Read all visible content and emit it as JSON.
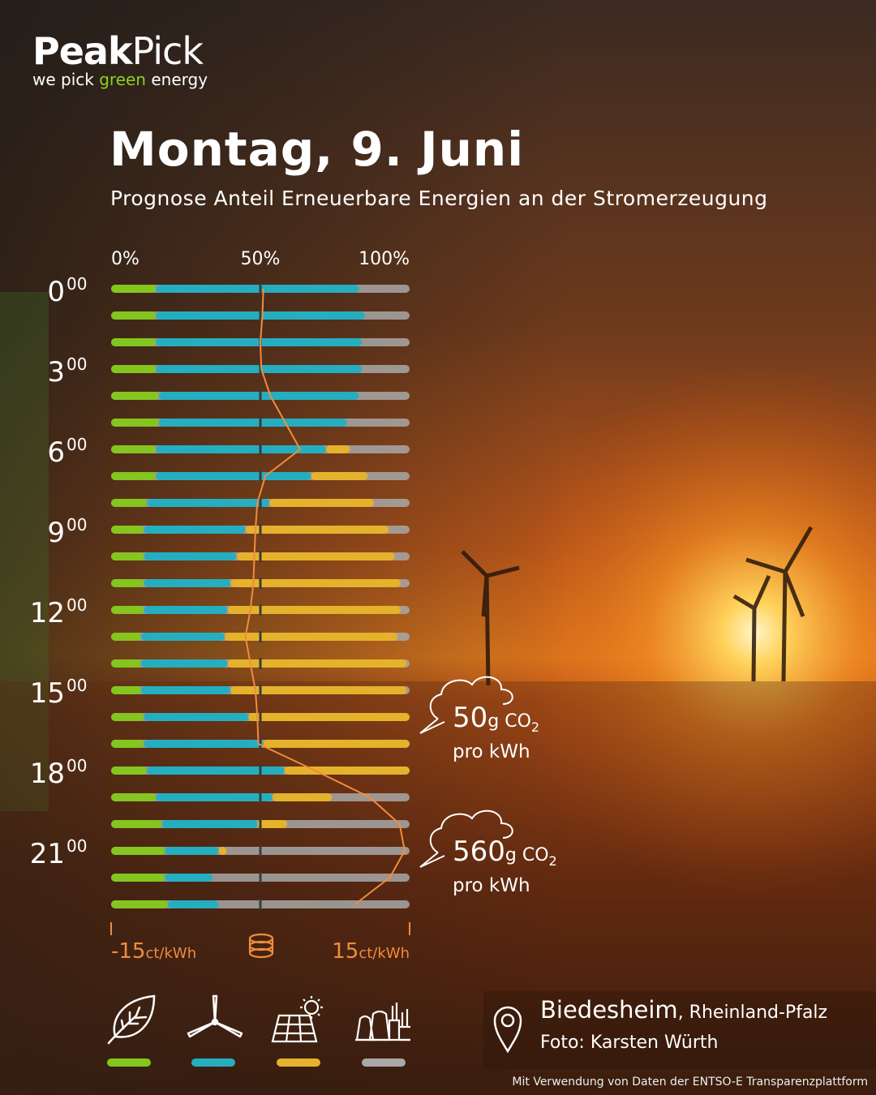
{
  "logo": {
    "peak": "Peak",
    "pick": "Pick",
    "tag_pre": "we pick ",
    "tag_green": "green",
    "tag_post": " energy"
  },
  "title": "Montag, 9. Juni",
  "subtitle": "Prognose Anteil Erneuerbare Energien an der Stromerzeugung",
  "colors": {
    "biomass": "#84c51f",
    "wind": "#25aec0",
    "solar": "#e5b22c",
    "conventional": "#a8a8a8",
    "price_line": "#ef8d3d",
    "accent_green": "#8cd11e"
  },
  "chart_data": {
    "type": "bar",
    "stacked": true,
    "orientation": "horizontal",
    "title": "Prognose Anteil Erneuerbare Energien an der Stromerzeugung",
    "x_tick_labels": [
      "0%",
      "50%",
      "100%"
    ],
    "xlim": [
      0,
      100
    ],
    "hours": [
      "0",
      "1",
      "2",
      "3",
      "4",
      "5",
      "6",
      "7",
      "8",
      "9",
      "10",
      "11",
      "12",
      "13",
      "14",
      "15",
      "16",
      "17",
      "18",
      "19",
      "20",
      "21",
      "22",
      "23"
    ],
    "hour_labels": [
      {
        "hour": 0,
        "main": "0",
        "sup": "00"
      },
      {
        "hour": 3,
        "main": "3",
        "sup": "00"
      },
      {
        "hour": 6,
        "main": "6",
        "sup": "00"
      },
      {
        "hour": 9,
        "main": "9",
        "sup": "00"
      },
      {
        "hour": 12,
        "main": "12",
        "sup": "00"
      },
      {
        "hour": 15,
        "main": "15",
        "sup": "00"
      },
      {
        "hour": 18,
        "main": "18",
        "sup": "00"
      },
      {
        "hour": 21,
        "main": "21",
        "sup": "00"
      }
    ],
    "series": [
      {
        "name": "Biomasse",
        "key": "biomass",
        "values": [
          15,
          15,
          15,
          15,
          16,
          16,
          15,
          15,
          12,
          11,
          11,
          11,
          11,
          10,
          10,
          10,
          11,
          11,
          12,
          15,
          17,
          18,
          18,
          19
        ]
      },
      {
        "name": "Wind",
        "key": "wind",
        "values": [
          68,
          70,
          69,
          69,
          67,
          63,
          57,
          52,
          41,
          34,
          31,
          29,
          28,
          28,
          29,
          30,
          35,
          40,
          46,
          39,
          32,
          18,
          16,
          17
        ]
      },
      {
        "name": "Solar",
        "key": "solar",
        "values": [
          0,
          0,
          0,
          0,
          0,
          0,
          8,
          19,
          35,
          48,
          53,
          57,
          58,
          58,
          60,
          59,
          58,
          54,
          42,
          20,
          10,
          1,
          0,
          0
        ]
      },
      {
        "name": "Konventionell",
        "key": "conventional",
        "values": [
          17,
          15,
          16,
          16,
          17,
          21,
          20,
          14,
          12,
          7,
          5,
          3,
          3,
          4,
          1,
          1,
          -4,
          -5,
          0,
          26,
          41,
          63,
          66,
          64
        ]
      }
    ],
    "price": {
      "name": "Strompreis",
      "unit": "ct/kWh",
      "min_label": "-15",
      "max_label": "15",
      "range": [
        -15,
        15
      ],
      "values": [
        0.3,
        0.2,
        0.0,
        0.1,
        1.0,
        2.5,
        4.0,
        0.5,
        -0.3,
        -0.5,
        -0.6,
        -0.7,
        -1.0,
        -1.5,
        -1.0,
        -0.5,
        -0.3,
        -0.2,
        5.5,
        11.0,
        14.0,
        14.5,
        13.0,
        9.5
      ]
    },
    "annotations": [
      {
        "hour": 16,
        "value": "50",
        "unit": "g",
        "gas": "CO",
        "sub": "2",
        "per": "pro kWh"
      },
      {
        "hour": 21,
        "value": "560",
        "unit": "g",
        "gas": "CO",
        "sub": "2",
        "per": "pro kWh"
      }
    ]
  },
  "legend": [
    {
      "icon": "leaf-icon",
      "key": "biomass"
    },
    {
      "icon": "wind-turbine-icon",
      "key": "wind"
    },
    {
      "icon": "solar-panel-icon",
      "key": "solar"
    },
    {
      "icon": "power-plant-icon",
      "key": "conventional"
    }
  ],
  "location": {
    "city": "Biedesheim",
    "region": ", Rheinland-Pfalz",
    "photo": "Foto: Karsten Würth"
  },
  "source": "Mit Verwendung von Daten der ENTSO-E Transparenzplattform"
}
